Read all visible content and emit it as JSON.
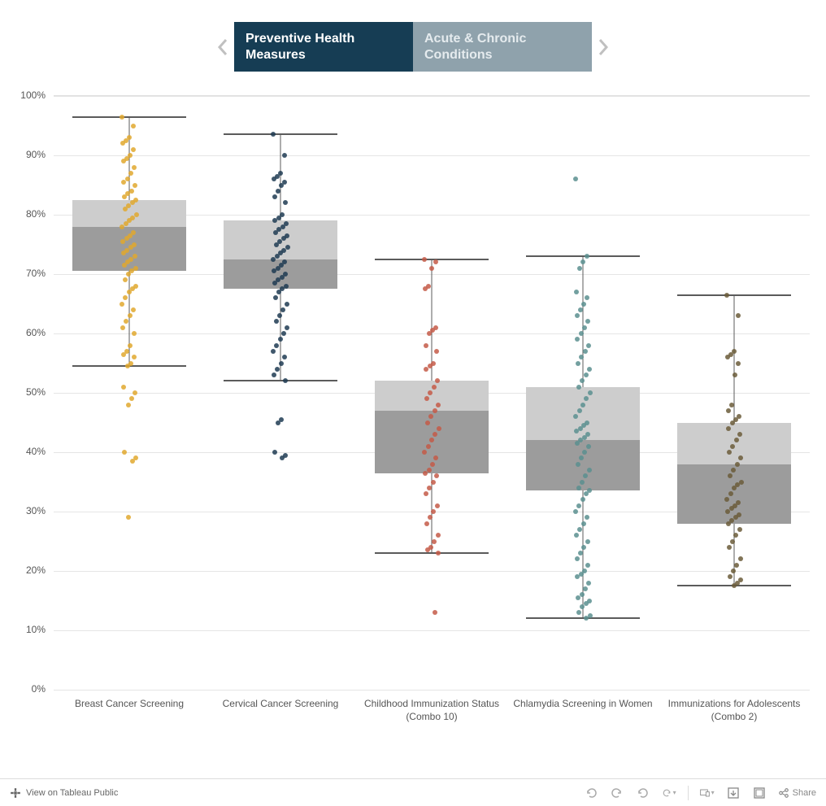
{
  "tabs": {
    "active_label": "Preventive Health Measures",
    "inactive_label": "Acute & Chronic Conditions"
  },
  "chart": {
    "type": "boxplot",
    "ylim": [
      0,
      100
    ],
    "ytick_step": 10,
    "ytick_labels": [
      "0%",
      "10%",
      "20%",
      "30%",
      "40%",
      "50%",
      "60%",
      "70%",
      "80%",
      "90%",
      "100%"
    ],
    "grid_color": "#e5e5e5",
    "background_color": "#ffffff",
    "box_upper_color": "#cdcdcd",
    "box_lower_color": "#9c9c9c",
    "whisker_color": "#5b5b5b",
    "axis_fontsize": 12,
    "axis_color": "#555555",
    "categories": [
      {
        "label": "Breast Cancer Screening",
        "point_color": "#e0a82e",
        "whisker_low": 54.5,
        "q1": 70.5,
        "median": 78,
        "q3": 82.5,
        "whisker_high": 96.5,
        "points": [
          96.5,
          95,
          93,
          92.5,
          92,
          91,
          90,
          89.5,
          89,
          88,
          87,
          86,
          85.5,
          85,
          84,
          83.5,
          83,
          82.5,
          82,
          81.5,
          81,
          80,
          79.5,
          79,
          78.5,
          78,
          77,
          76.5,
          76,
          75.5,
          75,
          74.5,
          74,
          73.5,
          73,
          72.5,
          72,
          71.5,
          71,
          70.5,
          70,
          69,
          68,
          67.5,
          67,
          66,
          65,
          64,
          63,
          62,
          61,
          60,
          58,
          57,
          56.5,
          56,
          55,
          54.5,
          51,
          50,
          49,
          48,
          40,
          39,
          38.5,
          29
        ]
      },
      {
        "label": "Cervical Cancer Screening",
        "point_color": "#1f3b52",
        "whisker_low": 52,
        "q1": 67.5,
        "median": 72.5,
        "q3": 79,
        "whisker_high": 93.5,
        "points": [
          93.5,
          90,
          87,
          86.5,
          86,
          85.5,
          85,
          84,
          83,
          82,
          80,
          79.5,
          79,
          78.5,
          78,
          77.5,
          77,
          76.5,
          76,
          75.5,
          75,
          74.5,
          74,
          73.5,
          73,
          72.5,
          72,
          71.5,
          71,
          70.5,
          70,
          69.5,
          69,
          68.5,
          68,
          67.5,
          67,
          66,
          65,
          64,
          63,
          62,
          61,
          60,
          59,
          58,
          57,
          56,
          55,
          54,
          53,
          52,
          45.5,
          45,
          40,
          39.5,
          39
        ]
      },
      {
        "label": "Childhood Immunization Status (Combo 10)",
        "point_color": "#c45a48",
        "whisker_low": 23,
        "q1": 36.5,
        "median": 47,
        "q3": 52,
        "whisker_high": 72.5,
        "points": [
          72.5,
          72,
          71,
          68,
          67.5,
          61,
          60.5,
          60,
          58,
          57,
          55,
          54.5,
          54,
          52,
          51,
          50,
          49,
          48,
          47,
          46,
          45,
          44,
          43,
          42,
          41,
          40,
          39,
          38,
          37,
          36.5,
          36,
          35,
          34,
          33,
          31,
          30,
          29,
          28,
          26,
          25,
          24,
          23.5,
          23,
          13
        ]
      },
      {
        "label": "Chlamydia Screening in Women",
        "point_color": "#5a8f8f",
        "whisker_low": 12,
        "q1": 33.5,
        "median": 42,
        "q3": 51,
        "whisker_high": 73,
        "points": [
          86,
          73,
          72,
          71,
          67,
          66,
          65,
          64,
          63,
          62,
          61,
          60,
          59,
          58,
          57,
          56,
          55,
          54,
          53,
          52,
          51,
          50,
          49,
          48,
          47,
          46,
          45,
          44.5,
          44,
          43.5,
          43,
          42.5,
          42,
          41.5,
          41,
          40,
          39,
          38,
          37,
          36,
          35,
          34,
          33.5,
          33,
          32,
          31,
          30,
          29,
          28,
          27,
          26,
          25,
          24,
          23,
          22,
          21,
          20,
          19.5,
          19,
          18,
          17,
          16,
          15.5,
          15,
          14.5,
          14,
          13,
          12.5,
          12
        ]
      },
      {
        "label": "Immunizations for Adolescents (Combo 2)",
        "point_color": "#6b5c3a",
        "whisker_low": 17.5,
        "q1": 28,
        "median": 38,
        "q3": 45,
        "whisker_high": 66.5,
        "points": [
          66.5,
          63,
          57,
          56.5,
          56,
          55,
          53,
          48,
          47,
          46,
          45.5,
          45,
          44,
          43,
          42,
          41,
          40,
          39,
          38,
          37,
          36,
          35,
          34.5,
          34,
          33,
          32,
          31.5,
          31,
          30.5,
          30,
          29.5,
          29,
          28.5,
          28,
          27,
          26,
          25,
          24,
          22,
          21,
          20,
          19,
          18.5,
          18,
          17.5
        ]
      }
    ]
  },
  "toolbar": {
    "view_label": "View on Tableau Public",
    "share_label": "Share"
  }
}
